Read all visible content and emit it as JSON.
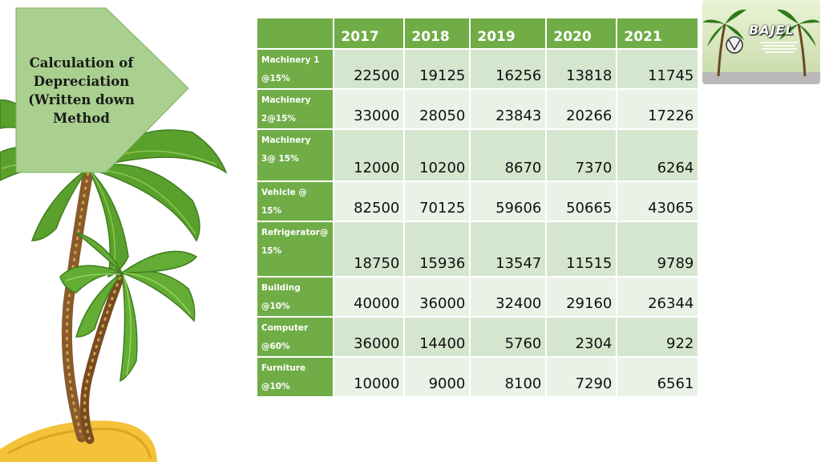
{
  "title": {
    "line1": "Calculation of",
    "line2": "Depreciation",
    "line3": "(Written down",
    "line4": "Method"
  },
  "table": {
    "years": [
      "2017",
      "2018",
      "2019",
      "2020",
      "2021"
    ],
    "rows": [
      {
        "label_1": "Machinery 1",
        "label_2": "@15%",
        "values": [
          "22500",
          "19125",
          "16256",
          "13818",
          "11745"
        ]
      },
      {
        "label_1": "Machinery",
        "label_2": "2@15%",
        "values": [
          "33000",
          "28050",
          "23843",
          "20266",
          "17226"
        ]
      },
      {
        "label_1": "Machinery",
        "label_2": "3@ 15%",
        "values": [
          "12000",
          "10200",
          "8670",
          "7370",
          "6264"
        ]
      },
      {
        "label_1": "Vehicle @ 15%",
        "label_2": "",
        "values": [
          "82500",
          "70125",
          "59606",
          "50665",
          "43065"
        ]
      },
      {
        "label_1": "Refrigerator@",
        "label_2": "15%",
        "values": [
          "18750",
          "15936",
          "13547",
          "11515",
          "9789"
        ]
      },
      {
        "label_1": "Building",
        "label_2": "@10%",
        "values": [
          "40000",
          "36000",
          "32400",
          "29160",
          "26344"
        ]
      },
      {
        "label_1": "Computer",
        "label_2": "@60%",
        "values": [
          "36000",
          "14400",
          "5760",
          "2304",
          "922"
        ]
      },
      {
        "label_1": "Furniture",
        "label_2": "@10%",
        "values": [
          "10000",
          "9000",
          "8100",
          "7290",
          "6561"
        ]
      }
    ]
  },
  "logo": {
    "brand": "BAJEL"
  },
  "colors": {
    "header_green": "#70ad47",
    "row_odd": "#d5e6cf",
    "row_even": "#eaf2e8",
    "callout": "#a9d08e",
    "palm_leaf": "#5aa02c",
    "palm_trunk": "#8a5a2b",
    "sand": "#f3c23a"
  }
}
